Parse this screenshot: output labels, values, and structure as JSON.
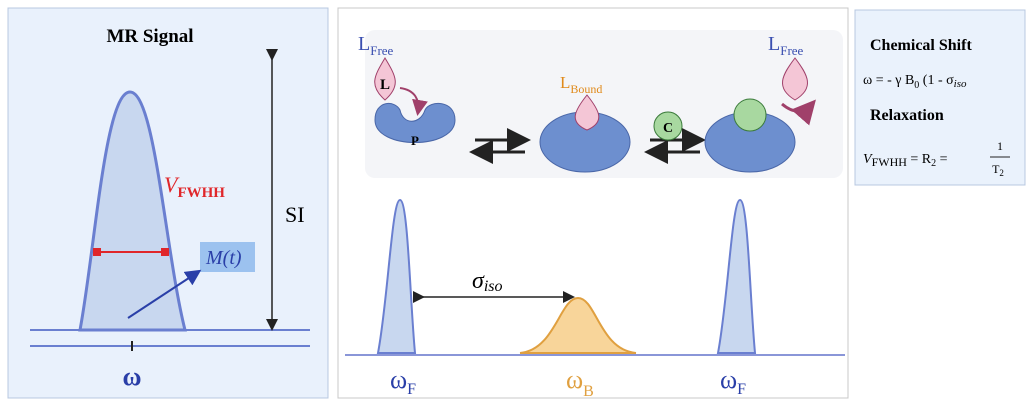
{
  "left_panel": {
    "title": "MR Signal",
    "linewidth_label": {
      "main": "V",
      "sub": "FWHH"
    },
    "intensity_label": "SI",
    "magnetization_label": "M(t)",
    "frequency_label": "ω"
  },
  "middle_panel": {
    "ligand_free_left": {
      "main": "L",
      "sub": "Free"
    },
    "ligand_symbol": "L",
    "protein_symbol": "P",
    "ligand_bound": {
      "main": "L",
      "sub": "Bound"
    },
    "competitor_symbol": "C",
    "ligand_free_right": {
      "main": "L",
      "sub": "Free"
    },
    "shift_label": {
      "main": "σ",
      "sub": "iso"
    },
    "peaks": [
      {
        "main": "ω",
        "sub": "F"
      },
      {
        "main": "ω",
        "sub": "B"
      },
      {
        "main": "ω",
        "sub": "F"
      }
    ]
  },
  "right_panel": {
    "chemical_shift": {
      "heading": "Chemical Shift",
      "equation": [
        "ω = - γ B",
        "0",
        " (1 - σ",
        "iso"
      ]
    },
    "relaxation": {
      "heading": "Relaxation",
      "equation": [
        "V",
        "FWHH",
        " = R",
        "2",
        " = ",
        "1",
        "T",
        "2"
      ]
    }
  }
}
